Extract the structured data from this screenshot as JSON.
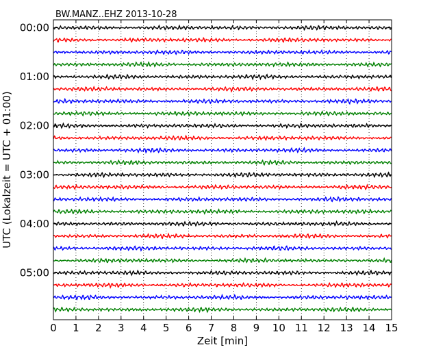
{
  "chart_data": {
    "type": "line",
    "title": "BW.MANZ..EHZ 2013-10-28",
    "xlabel": "Zeit  [min]",
    "ylabel": "UTC (Lokalzeit = UTC + 01:00)",
    "xlim": [
      0,
      15
    ],
    "x_ticks": [
      "0",
      "1",
      "2",
      "3",
      "4",
      "5",
      "6",
      "7",
      "8",
      "9",
      "10",
      "11",
      "12",
      "13",
      "14",
      "15"
    ],
    "y_tick_labels": [
      "00:00",
      "01:00",
      "02:00",
      "03:00",
      "04:00",
      "05:00"
    ],
    "grid": "vertical dotted",
    "trace_colors": [
      "#000000",
      "#ff0000",
      "#0000ff",
      "#008000"
    ],
    "trace_count": 24,
    "traces_per_hour": 4,
    "minutes_per_trace": 15
  }
}
